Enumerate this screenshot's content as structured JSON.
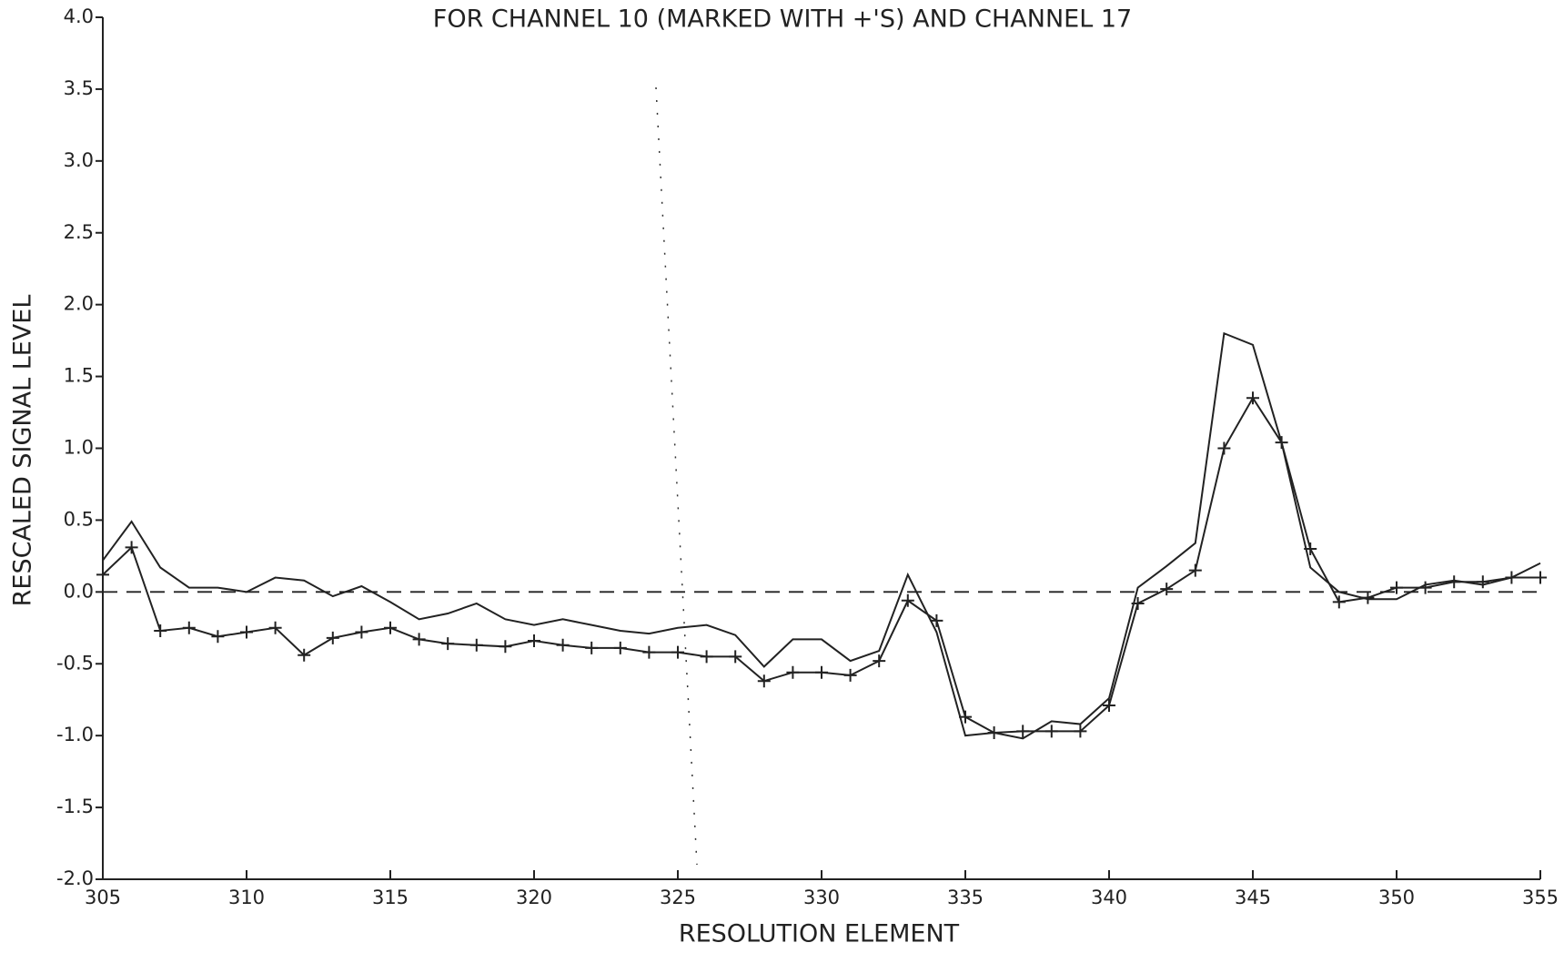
{
  "chart_data": {
    "type": "line",
    "title": "FOR CHANNEL 10 (MARKED WITH +'S) AND CHANNEL 17",
    "xlabel": "RESOLUTION ELEMENT",
    "ylabel": "RESCALED SIGNAL LEVEL",
    "x": [
      305,
      306,
      307,
      308,
      309,
      310,
      311,
      312,
      313,
      314,
      315,
      316,
      317,
      318,
      319,
      320,
      321,
      322,
      323,
      324,
      325,
      326,
      327,
      328,
      329,
      330,
      331,
      332,
      333,
      334,
      335,
      336,
      337,
      338,
      339,
      340,
      341,
      342,
      343,
      344,
      345,
      346,
      347,
      348,
      349,
      350,
      351,
      352,
      353,
      354,
      355
    ],
    "series": [
      {
        "color": "#222222",
        "marker": "+",
        "values": [
          0.12,
          0.31,
          -0.27,
          -0.25,
          -0.31,
          -0.28,
          -0.25,
          -0.44,
          -0.32,
          -0.28,
          -0.25,
          -0.33,
          -0.36,
          -0.37,
          -0.38,
          -0.34,
          -0.37,
          -0.39,
          -0.39,
          -0.42,
          -0.42,
          -0.45,
          -0.45,
          -0.62,
          -0.56,
          -0.56,
          -0.58,
          -0.48,
          -0.06,
          -0.2,
          -0.87,
          -0.98,
          -0.97,
          -0.97,
          -0.97,
          -0.79,
          -0.08,
          0.02,
          0.15,
          1.0,
          1.35,
          1.04,
          0.3,
          -0.07,
          -0.04,
          0.03,
          0.03,
          0.07,
          0.07,
          0.1,
          0.1
        ]
      },
      {
        "color": "#222222",
        "values": [
          0.22,
          0.49,
          0.17,
          0.03,
          0.03,
          0.0,
          0.1,
          0.08,
          -0.03,
          0.04,
          -0.07,
          -0.19,
          -0.15,
          -0.08,
          -0.19,
          -0.23,
          -0.19,
          -0.23,
          -0.27,
          -0.29,
          -0.25,
          -0.23,
          -0.3,
          -0.52,
          -0.33,
          -0.33,
          -0.48,
          -0.41,
          0.12,
          -0.28,
          -1.0,
          -0.98,
          -1.02,
          -0.9,
          -0.92,
          -0.74,
          0.03,
          0.18,
          0.34,
          1.8,
          1.72,
          1.04,
          0.17,
          0.0,
          -0.05,
          -0.05,
          0.05,
          0.08,
          0.05,
          0.1,
          0.2
        ]
      }
    ],
    "xlim": [
      305,
      355
    ],
    "xticks": [
      305,
      310,
      315,
      320,
      325,
      330,
      335,
      340,
      345,
      350,
      355
    ],
    "ylim": [
      -2,
      4
    ],
    "yticks": [
      {
        "value": -2,
        "label": "-2.0"
      },
      -1.5,
      {
        "value": -1,
        "label": "-1.0"
      },
      -0.5,
      {
        "value": 0,
        "label": "0.0"
      },
      0.5,
      {
        "value": 1,
        "label": "1.0"
      },
      1.5,
      {
        "value": 2,
        "label": "2.0"
      },
      2.5,
      {
        "value": 3,
        "label": "3.0"
      },
      3.5,
      {
        "value": 4,
        "label": "4.0"
      }
    ]
  }
}
